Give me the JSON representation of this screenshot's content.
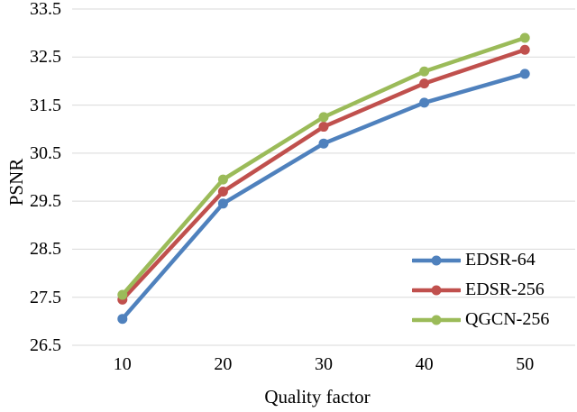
{
  "figure": {
    "background": "#FFFFFF",
    "text_color": "#000000"
  },
  "chart_data": {
    "type": "line",
    "title": "",
    "xlabel": "Quality factor",
    "ylabel": "PSNR",
    "x": [
      10,
      20,
      30,
      40,
      50
    ],
    "x_tick_labels": [
      "10",
      "20",
      "30",
      "40",
      "50"
    ],
    "ylim": [
      26.5,
      33.5
    ],
    "yticks": [
      33.5,
      32.5,
      31.5,
      30.5,
      29.5,
      28.5,
      27.5,
      26.5
    ],
    "ytick_labels": [
      "33.5",
      "32.5",
      "31.5",
      "30.5",
      "29.5",
      "28.5",
      "27.5",
      "26.5"
    ],
    "grid": true,
    "grid_color": "#D9D9D9",
    "legend_position": "inside-lower-right",
    "marker": "circle",
    "series": [
      {
        "name": "EDSR-64",
        "color": "#4F81BD",
        "values": [
          27.05,
          29.45,
          30.7,
          31.55,
          32.15
        ]
      },
      {
        "name": "EDSR-256",
        "color": "#C0504D",
        "values": [
          27.45,
          29.7,
          31.05,
          31.95,
          32.65
        ]
      },
      {
        "name": "QGCN-256",
        "color": "#9BBB59",
        "values": [
          27.55,
          29.95,
          31.25,
          32.2,
          32.9
        ]
      }
    ]
  }
}
